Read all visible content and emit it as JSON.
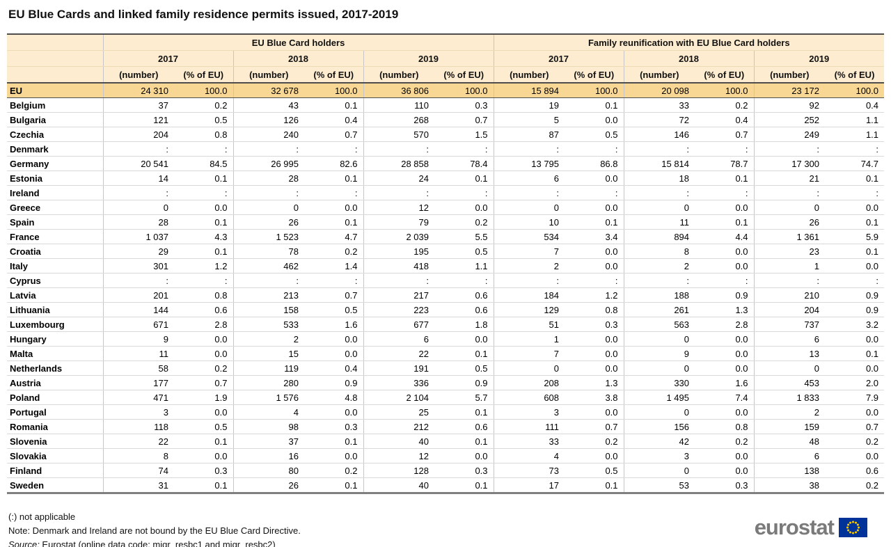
{
  "title": "EU Blue Cards and linked family residence permits issued, 2017-2019",
  "chart_data": {
    "type": "table",
    "title": "EU Blue Cards and linked family residence permits issued, 2017-2019",
    "column_groups": [
      "EU Blue Card holders",
      "Family reunification with EU Blue Card holders"
    ],
    "years": [
      "2017",
      "2018",
      "2019"
    ],
    "subcolumns": [
      "(number)",
      "(% of EU)"
    ],
    "not_applicable_symbol": ":",
    "rows": [
      {
        "country": "EU",
        "highlight": true,
        "values": [
          "24 310",
          "100.0",
          "32 678",
          "100.0",
          "36 806",
          "100.0",
          "15 894",
          "100.0",
          "20 098",
          "100.0",
          "23 172",
          "100.0"
        ]
      },
      {
        "country": "Belgium",
        "values": [
          "37",
          "0.2",
          "43",
          "0.1",
          "110",
          "0.3",
          "19",
          "0.1",
          "33",
          "0.2",
          "92",
          "0.4"
        ]
      },
      {
        "country": "Bulgaria",
        "values": [
          "121",
          "0.5",
          "126",
          "0.4",
          "268",
          "0.7",
          "5",
          "0.0",
          "72",
          "0.4",
          "252",
          "1.1"
        ]
      },
      {
        "country": "Czechia",
        "values": [
          "204",
          "0.8",
          "240",
          "0.7",
          "570",
          "1.5",
          "87",
          "0.5",
          "146",
          "0.7",
          "249",
          "1.1"
        ]
      },
      {
        "country": "Denmark",
        "values": [
          ":",
          ":",
          ":",
          ":",
          ":",
          ":",
          ":",
          ":",
          ":",
          ":",
          ":",
          ":"
        ]
      },
      {
        "country": "Germany",
        "values": [
          "20 541",
          "84.5",
          "26 995",
          "82.6",
          "28 858",
          "78.4",
          "13 795",
          "86.8",
          "15 814",
          "78.7",
          "17 300",
          "74.7"
        ]
      },
      {
        "country": "Estonia",
        "values": [
          "14",
          "0.1",
          "28",
          "0.1",
          "24",
          "0.1",
          "6",
          "0.0",
          "18",
          "0.1",
          "21",
          "0.1"
        ]
      },
      {
        "country": "Ireland",
        "values": [
          ":",
          ":",
          ":",
          ":",
          ":",
          ":",
          ":",
          ":",
          ":",
          ":",
          ":",
          ":"
        ]
      },
      {
        "country": "Greece",
        "values": [
          "0",
          "0.0",
          "0",
          "0.0",
          "12",
          "0.0",
          "0",
          "0.0",
          "0",
          "0.0",
          "0",
          "0.0"
        ]
      },
      {
        "country": "Spain",
        "values": [
          "28",
          "0.1",
          "26",
          "0.1",
          "79",
          "0.2",
          "10",
          "0.1",
          "11",
          "0.1",
          "26",
          "0.1"
        ]
      },
      {
        "country": "France",
        "values": [
          "1 037",
          "4.3",
          "1 523",
          "4.7",
          "2 039",
          "5.5",
          "534",
          "3.4",
          "894",
          "4.4",
          "1 361",
          "5.9"
        ]
      },
      {
        "country": "Croatia",
        "values": [
          "29",
          "0.1",
          "78",
          "0.2",
          "195",
          "0.5",
          "7",
          "0.0",
          "8",
          "0.0",
          "23",
          "0.1"
        ]
      },
      {
        "country": "Italy",
        "values": [
          "301",
          "1.2",
          "462",
          "1.4",
          "418",
          "1.1",
          "2",
          "0.0",
          "2",
          "0.0",
          "1",
          "0.0"
        ]
      },
      {
        "country": "Cyprus",
        "values": [
          ":",
          ":",
          ":",
          ":",
          ":",
          ":",
          ":",
          ":",
          ":",
          ":",
          ":",
          ":"
        ]
      },
      {
        "country": "Latvia",
        "values": [
          "201",
          "0.8",
          "213",
          "0.7",
          "217",
          "0.6",
          "184",
          "1.2",
          "188",
          "0.9",
          "210",
          "0.9"
        ]
      },
      {
        "country": "Lithuania",
        "values": [
          "144",
          "0.6",
          "158",
          "0.5",
          "223",
          "0.6",
          "129",
          "0.8",
          "261",
          "1.3",
          "204",
          "0.9"
        ]
      },
      {
        "country": "Luxembourg",
        "values": [
          "671",
          "2.8",
          "533",
          "1.6",
          "677",
          "1.8",
          "51",
          "0.3",
          "563",
          "2.8",
          "737",
          "3.2"
        ]
      },
      {
        "country": "Hungary",
        "values": [
          "9",
          "0.0",
          "2",
          "0.0",
          "6",
          "0.0",
          "1",
          "0.0",
          "0",
          "0.0",
          "6",
          "0.0"
        ]
      },
      {
        "country": "Malta",
        "values": [
          "11",
          "0.0",
          "15",
          "0.0",
          "22",
          "0.1",
          "7",
          "0.0",
          "9",
          "0.0",
          "13",
          "0.1"
        ]
      },
      {
        "country": "Netherlands",
        "values": [
          "58",
          "0.2",
          "119",
          "0.4",
          "191",
          "0.5",
          "0",
          "0.0",
          "0",
          "0.0",
          "0",
          "0.0"
        ]
      },
      {
        "country": "Austria",
        "values": [
          "177",
          "0.7",
          "280",
          "0.9",
          "336",
          "0.9",
          "208",
          "1.3",
          "330",
          "1.6",
          "453",
          "2.0"
        ]
      },
      {
        "country": "Poland",
        "values": [
          "471",
          "1.9",
          "1 576",
          "4.8",
          "2 104",
          "5.7",
          "608",
          "3.8",
          "1 495",
          "7.4",
          "1 833",
          "7.9"
        ]
      },
      {
        "country": "Portugal",
        "values": [
          "3",
          "0.0",
          "4",
          "0.0",
          "25",
          "0.1",
          "3",
          "0.0",
          "0",
          "0.0",
          "2",
          "0.0"
        ]
      },
      {
        "country": "Romania",
        "values": [
          "118",
          "0.5",
          "98",
          "0.3",
          "212",
          "0.6",
          "111",
          "0.7",
          "156",
          "0.8",
          "159",
          "0.7"
        ]
      },
      {
        "country": "Slovenia",
        "values": [
          "22",
          "0.1",
          "37",
          "0.1",
          "40",
          "0.1",
          "33",
          "0.2",
          "42",
          "0.2",
          "48",
          "0.2"
        ]
      },
      {
        "country": "Slovakia",
        "values": [
          "8",
          "0.0",
          "16",
          "0.0",
          "12",
          "0.0",
          "4",
          "0.0",
          "3",
          "0.0",
          "6",
          "0.0"
        ]
      },
      {
        "country": "Finland",
        "values": [
          "74",
          "0.3",
          "80",
          "0.2",
          "128",
          "0.3",
          "73",
          "0.5",
          "0",
          "0.0",
          "138",
          "0.6"
        ]
      },
      {
        "country": "Sweden",
        "values": [
          "31",
          "0.1",
          "26",
          "0.1",
          "40",
          "0.1",
          "17",
          "0.1",
          "53",
          "0.3",
          "38",
          "0.2"
        ]
      }
    ]
  },
  "footnotes": {
    "na": "(:) not applicable",
    "note": "Note: Denmark and Ireland are not bound by the EU Blue Card Directive.",
    "source_label": "Source:",
    "source_text": " Eurostat (online data code: migr_resbc1 and migr_resbc2)"
  },
  "logo": {
    "text": "eurostat"
  },
  "colors": {
    "header_bg": "#fdeccf",
    "eu_row_bg": "#f8d795",
    "dark_rule": "#4d4d4d",
    "light_rule": "#d9d9d9",
    "flag_blue": "#003399",
    "star_yellow": "#ffcc00",
    "logo_gray": "#7a7a7a"
  }
}
